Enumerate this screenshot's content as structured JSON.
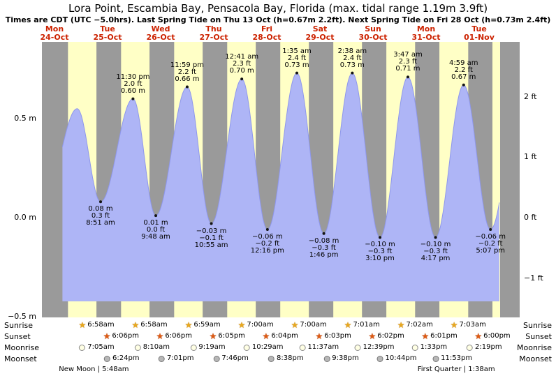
{
  "title": "Lora Point, Escambia Bay, Pensacola Bay, Florida (max. tidal range 1.19m 3.9ft)",
  "subtitle": "Times are CDT (UTC −5.0hrs). Last Spring Tide on Thu 13 Oct (h=0.67m 2.2ft). Next Spring Tide on Fri 28 Oct (h=0.73m 2.4ft)",
  "days": [
    {
      "dow": "Mon",
      "date": "24-Oct"
    },
    {
      "dow": "Tue",
      "date": "25-Oct"
    },
    {
      "dow": "Wed",
      "date": "26-Oct"
    },
    {
      "dow": "Thu",
      "date": "27-Oct"
    },
    {
      "dow": "Fri",
      "date": "28-Oct"
    },
    {
      "dow": "Sat",
      "date": "29-Oct"
    },
    {
      "dow": "Sun",
      "date": "30-Oct"
    },
    {
      "dow": "Mon",
      "date": "31-Oct"
    },
    {
      "dow": "Tue",
      "date": "01-Nov"
    }
  ],
  "chart_data": {
    "type": "area",
    "title": "Tide height curve",
    "x_days": [
      "Mon 24-Oct",
      "Tue 25-Oct",
      "Wed 26-Oct",
      "Thu 27-Oct",
      "Fri 28-Oct",
      "Sat 29-Oct",
      "Sun 30-Oct",
      "Mon 31-Oct",
      "Tue 01-Nov"
    ],
    "ylim_m": [
      -0.5,
      0.9
    ],
    "yticks_left": [
      {
        "label": "0.5 m",
        "value": 0.5
      },
      {
        "label": "0.0 m",
        "value": 0.0
      },
      {
        "label": "−0.5 m",
        "value": -0.5
      }
    ],
    "yticks_right": [
      {
        "label": "2 ft",
        "value": 0.6096
      },
      {
        "label": "1 ft",
        "value": 0.3048
      },
      {
        "label": "0 ft",
        "value": 0.0
      },
      {
        "label": "−1 ft",
        "value": -0.3048
      }
    ],
    "extremes": [
      {
        "type": "low",
        "day": 0,
        "time": "8:00 am",
        "height_m": 0.12,
        "labeled": false
      },
      {
        "type": "high",
        "day": 0,
        "time": "10:15 pm",
        "height_m": 0.55,
        "labeled": false
      },
      {
        "type": "low",
        "day": 1,
        "time": "8:51 am",
        "height_m": 0.08,
        "labeled": true,
        "lines": [
          "0.08 m",
          "0.3 ft",
          "8:51 am"
        ]
      },
      {
        "type": "high",
        "day": 1,
        "time": "11:30 pm",
        "height_m": 0.6,
        "labeled": true,
        "lines": [
          "11:30 pm",
          "2.0 ft",
          "0.60 m"
        ]
      },
      {
        "type": "low",
        "day": 2,
        "time": "9:48 am",
        "height_m": 0.01,
        "labeled": true,
        "lines": [
          "0.01 m",
          "0.0 ft",
          "9:48 am"
        ]
      },
      {
        "type": "high",
        "day": 2,
        "time": "11:59 pm",
        "height_m": 0.66,
        "labeled": true,
        "lines": [
          "11:59 pm",
          "2.2 ft",
          "0.66 m"
        ]
      },
      {
        "type": "low",
        "day": 3,
        "time": "10:55 am",
        "height_m": -0.03,
        "labeled": true,
        "lines": [
          "−0.03 m",
          "−0.1 ft",
          "10:55 am"
        ]
      },
      {
        "type": "high",
        "day": 4,
        "time": "12:41 am",
        "height_m": 0.7,
        "labeled": true,
        "lines": [
          "12:41 am",
          "2.3 ft",
          "0.70 m"
        ]
      },
      {
        "type": "low",
        "day": 4,
        "time": "12:16 pm",
        "height_m": -0.06,
        "labeled": true,
        "lines": [
          "−0.06 m",
          "−0.2 ft",
          "12:16 pm"
        ]
      },
      {
        "type": "high",
        "day": 5,
        "time": "1:35 am",
        "height_m": 0.73,
        "labeled": true,
        "lines": [
          "1:35 am",
          "2.4 ft",
          "0.73 m"
        ]
      },
      {
        "type": "low",
        "day": 5,
        "time": "1:46 pm",
        "height_m": -0.08,
        "labeled": true,
        "lines": [
          "−0.08 m",
          "−0.3 ft",
          "1:46 pm"
        ]
      },
      {
        "type": "high",
        "day": 6,
        "time": "2:38 am",
        "height_m": 0.73,
        "labeled": true,
        "lines": [
          "2:38 am",
          "2.4 ft",
          "0.73 m"
        ]
      },
      {
        "type": "low",
        "day": 6,
        "time": "3:10 pm",
        "height_m": -0.1,
        "labeled": true,
        "lines": [
          "−0.10 m",
          "−0.3 ft",
          "3:10 pm"
        ]
      },
      {
        "type": "high",
        "day": 7,
        "time": "3:47 am",
        "height_m": 0.71,
        "labeled": true,
        "lines": [
          "3:47 am",
          "2.3 ft",
          "0.71 m"
        ]
      },
      {
        "type": "low",
        "day": 7,
        "time": "4:17 pm",
        "height_m": -0.1,
        "labeled": true,
        "lines": [
          "−0.10 m",
          "−0.3 ft",
          "4:17 pm"
        ]
      },
      {
        "type": "high",
        "day": 8,
        "time": "4:59 am",
        "height_m": 0.67,
        "labeled": true,
        "lines": [
          "4:59 am",
          "2.2 ft",
          "0.67 m"
        ]
      },
      {
        "type": "low",
        "day": 8,
        "time": "5:07 pm",
        "height_m": -0.06,
        "labeled": true,
        "lines": [
          "−0.06 m",
          "−0.2 ft",
          "5:07 pm"
        ]
      },
      {
        "type": "high",
        "day": 9,
        "time": "6:30 am",
        "height_m": 0.6,
        "labeled": false
      }
    ],
    "colors": {
      "plot_bg": "#9a9a9a",
      "night_band": "#ffffc6",
      "tide_fill": "#aeb5f6",
      "tide_stroke": "#8e97ec",
      "day_label": "#cc2200",
      "annotation": "#000000",
      "dot": "#141414"
    }
  },
  "astro": {
    "first_day_index": 1,
    "rows": [
      {
        "id": "sunrise",
        "label": "Sunrise",
        "icon": "sunrise-star-icon",
        "times": [
          "6:58am",
          "6:58am",
          "6:59am",
          "7:00am",
          "7:00am",
          "7:01am",
          "7:02am",
          "7:03am"
        ]
      },
      {
        "id": "sunset",
        "label": "Sunset",
        "icon": "sunset-star-icon",
        "times": [
          "6:06pm",
          "6:06pm",
          "6:05pm",
          "6:04pm",
          "6:03pm",
          "6:02pm",
          "6:01pm",
          "6:00pm"
        ]
      },
      {
        "id": "moonrise",
        "label": "Moonrise",
        "icon": "moonrise-icon",
        "times": [
          "7:05am",
          "8:10am",
          "9:19am",
          "10:29am",
          "11:37am",
          "12:39pm",
          "1:33pm",
          "2:19pm"
        ]
      },
      {
        "id": "moonset",
        "label": "Moonset",
        "icon": "moonset-icon",
        "times": [
          "6:24pm",
          "7:01pm",
          "7:46pm",
          "8:38pm",
          "9:38pm",
          "10:44pm",
          "11:53pm"
        ]
      }
    ],
    "phases": [
      {
        "label": "New Moon | 5:48am",
        "day": 1,
        "time": "5:48am"
      },
      {
        "label": "First Quarter | 1:38am",
        "day": 8,
        "time": "1:38am"
      }
    ]
  }
}
